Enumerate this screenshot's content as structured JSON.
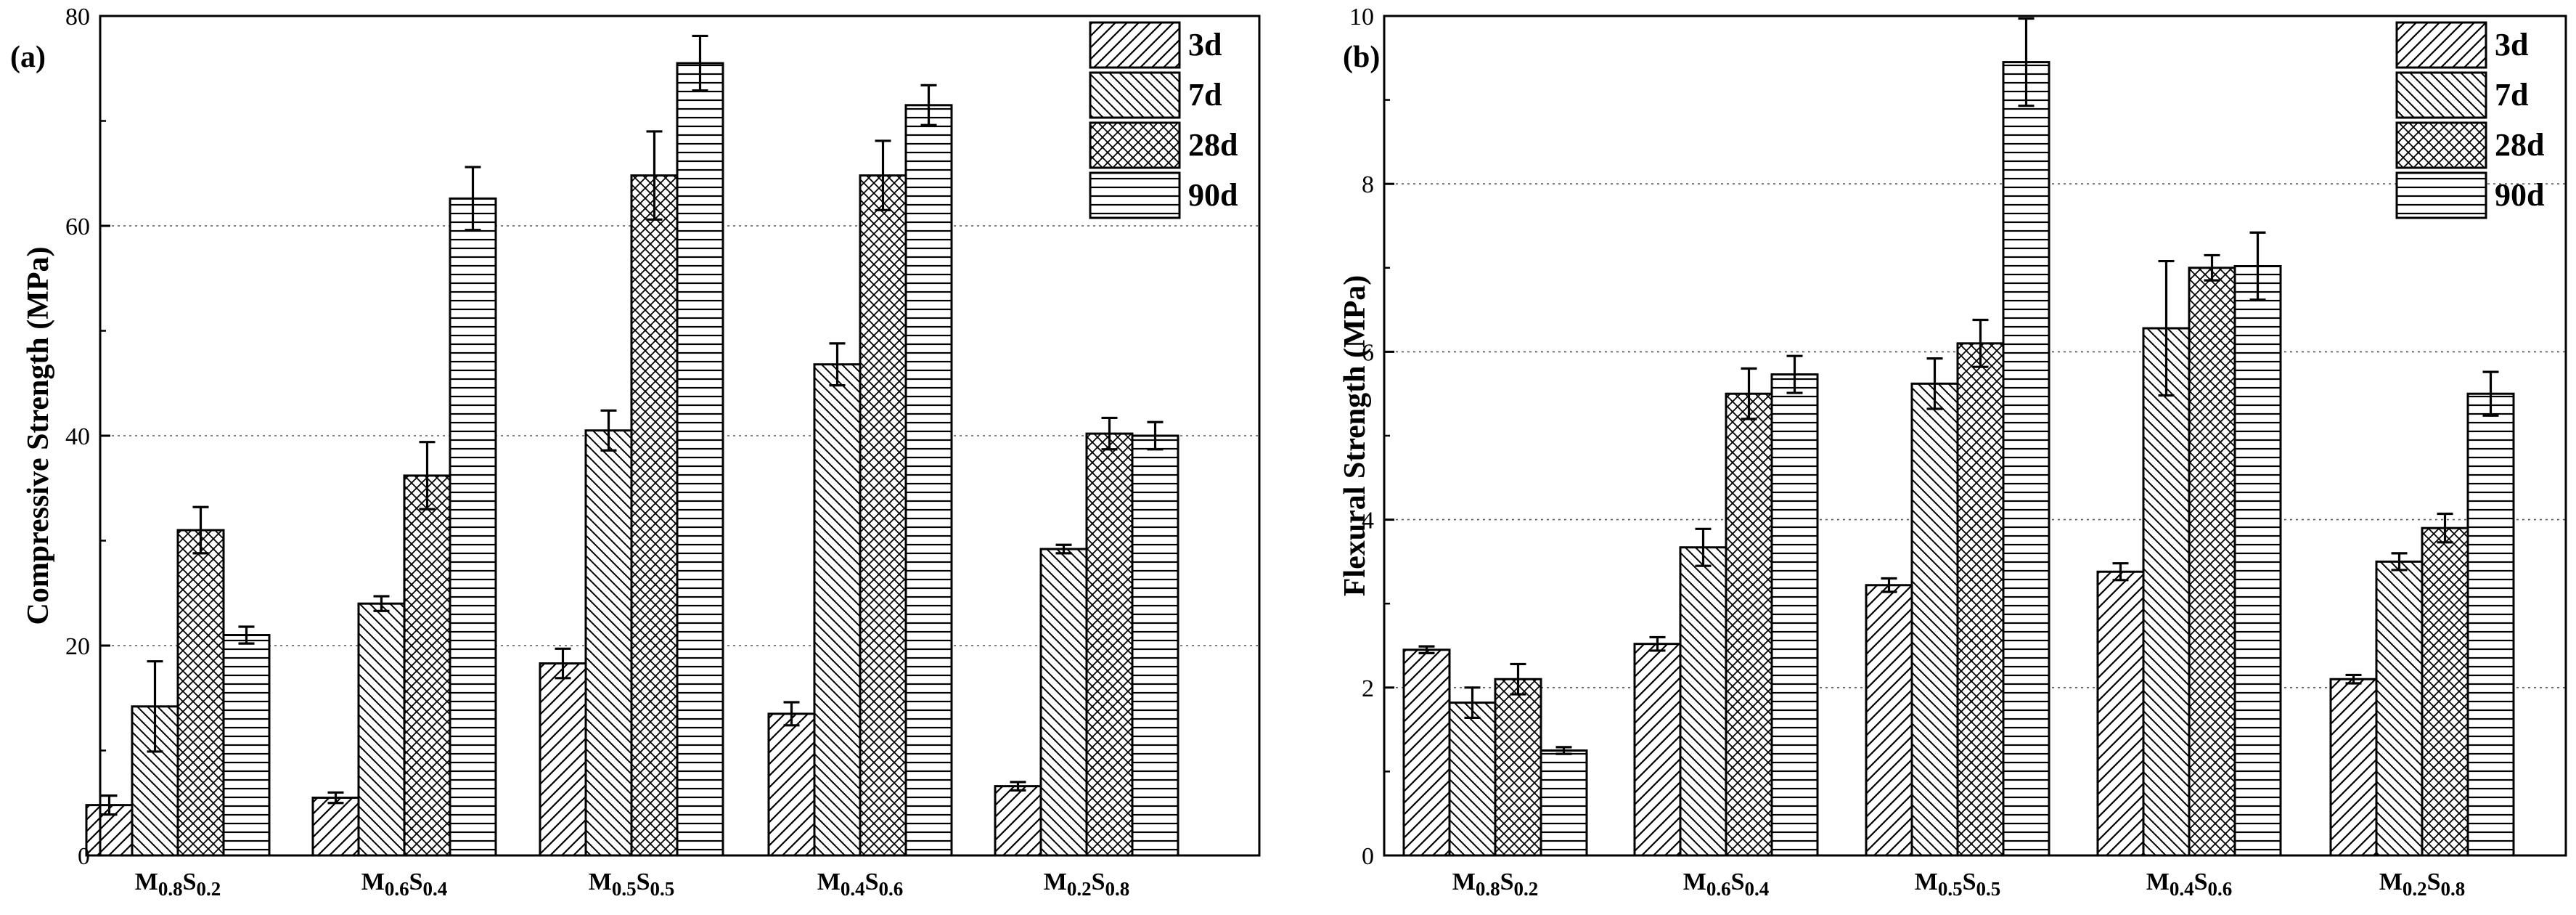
{
  "colors": {
    "ink": "#000000",
    "background": "#ffffff",
    "bar_fill": "#ffffff",
    "grid": "#555555"
  },
  "chart_data": [
    {
      "type": "bar",
      "panel_label": "(a)",
      "ylabel": "Compressive Strength (MPa)",
      "xlabel": "",
      "ylim": [
        0,
        80
      ],
      "yticks": [
        "0",
        "20",
        "40",
        "60",
        "80"
      ],
      "ytick_values": [
        0,
        20,
        40,
        60,
        80
      ],
      "grid": "horizontal dotted at 20, 40, 60",
      "legend_position": "top-right",
      "categories": [
        {
          "base1": "M",
          "sub1": "0.8",
          "base2": "S",
          "sub2": "0.2"
        },
        {
          "base1": "M",
          "sub1": "0.6",
          "base2": "S",
          "sub2": "0.4"
        },
        {
          "base1": "M",
          "sub1": "0.5",
          "base2": "S",
          "sub2": "0.5"
        },
        {
          "base1": "M",
          "sub1": "0.4",
          "base2": "S",
          "sub2": "0.6"
        },
        {
          "base1": "M",
          "sub1": "0.2",
          "base2": "S",
          "sub2": "0.8"
        }
      ],
      "series": [
        {
          "name": "3d",
          "pattern": "hatch-right",
          "values": [
            4.8,
            5.5,
            18.3,
            13.5,
            6.6
          ],
          "errors": [
            0.9,
            0.5,
            1.4,
            1.1,
            0.4
          ]
        },
        {
          "name": "7d",
          "pattern": "hatch-left",
          "values": [
            14.2,
            24.0,
            40.5,
            46.8,
            29.2
          ],
          "errors": [
            4.3,
            0.7,
            1.9,
            2.0,
            0.4
          ]
        },
        {
          "name": "28d",
          "pattern": "crosshatch",
          "values": [
            31.0,
            36.2,
            64.8,
            64.8,
            40.2
          ],
          "errors": [
            2.2,
            3.2,
            4.2,
            3.3,
            1.5
          ]
        },
        {
          "name": "90d",
          "pattern": "horizontal",
          "values": [
            21.0,
            62.6,
            75.5,
            71.5,
            40.0
          ],
          "errors": [
            0.8,
            3.0,
            2.6,
            1.9,
            1.3
          ]
        }
      ]
    },
    {
      "type": "bar",
      "panel_label": "(b)",
      "ylabel": "Flexural Strength (MPa)",
      "xlabel": "",
      "ylim": [
        0,
        10
      ],
      "yticks": [
        "0",
        "2",
        "4",
        "6",
        "8",
        "10"
      ],
      "ytick_values": [
        0,
        2,
        4,
        6,
        8,
        10
      ],
      "grid": "horizontal dotted at 2, 4, 6, 8",
      "legend_position": "top-right",
      "categories": [
        {
          "base1": "M",
          "sub1": "0.8",
          "base2": "S",
          "sub2": "0.2"
        },
        {
          "base1": "M",
          "sub1": "0.6",
          "base2": "S",
          "sub2": "0.4"
        },
        {
          "base1": "M",
          "sub1": "0.5",
          "base2": "S",
          "sub2": "0.5"
        },
        {
          "base1": "M",
          "sub1": "0.4",
          "base2": "S",
          "sub2": "0.6"
        },
        {
          "base1": "M",
          "sub1": "0.2",
          "base2": "S",
          "sub2": "0.8"
        }
      ],
      "series": [
        {
          "name": "3d",
          "pattern": "hatch-right",
          "values": [
            2.45,
            2.52,
            3.22,
            3.38,
            2.1
          ],
          "errors": [
            0.04,
            0.08,
            0.08,
            0.1,
            0.05
          ]
        },
        {
          "name": "7d",
          "pattern": "hatch-left",
          "values": [
            1.82,
            3.67,
            5.62,
            6.28,
            3.5
          ],
          "errors": [
            0.18,
            0.22,
            0.3,
            0.8,
            0.1
          ]
        },
        {
          "name": "28d",
          "pattern": "crosshatch",
          "values": [
            2.1,
            5.5,
            6.1,
            7.0,
            3.9
          ],
          "errors": [
            0.18,
            0.3,
            0.28,
            0.15,
            0.17
          ]
        },
        {
          "name": "90d",
          "pattern": "horizontal",
          "values": [
            1.25,
            5.73,
            9.45,
            7.02,
            5.5
          ],
          "errors": [
            0.04,
            0.22,
            0.52,
            0.4,
            0.26
          ]
        }
      ]
    }
  ]
}
